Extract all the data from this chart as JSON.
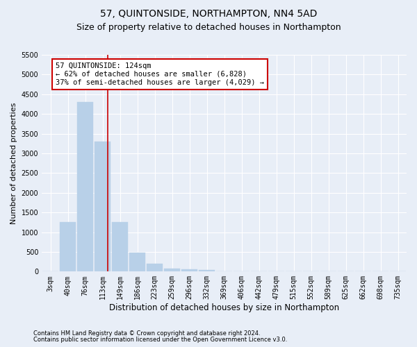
{
  "title": "57, QUINTONSIDE, NORTHAMPTON, NN4 5AD",
  "subtitle": "Size of property relative to detached houses in Northampton",
  "xlabel": "Distribution of detached houses by size in Northampton",
  "ylabel": "Number of detached properties",
  "categories": [
    "3sqm",
    "40sqm",
    "76sqm",
    "113sqm",
    "149sqm",
    "186sqm",
    "223sqm",
    "259sqm",
    "296sqm",
    "332sqm",
    "369sqm",
    "406sqm",
    "442sqm",
    "479sqm",
    "515sqm",
    "552sqm",
    "589sqm",
    "625sqm",
    "662sqm",
    "698sqm",
    "735sqm"
  ],
  "values": [
    0,
    1250,
    4300,
    3300,
    1250,
    480,
    200,
    80,
    60,
    40,
    0,
    0,
    0,
    0,
    0,
    0,
    0,
    0,
    0,
    0,
    0
  ],
  "bar_color": "#b8d0e8",
  "bar_edge_color": "#b8d0e8",
  "property_line_x": 3.3,
  "property_line_color": "#cc0000",
  "annotation_text": "57 QUINTONSIDE: 124sqm\n← 62% of detached houses are smaller (6,828)\n37% of semi-detached houses are larger (4,029) →",
  "annotation_box_color": "#ffffff",
  "annotation_box_edge": "#cc0000",
  "ylim": [
    0,
    5500
  ],
  "yticks": [
    0,
    500,
    1000,
    1500,
    2000,
    2500,
    3000,
    3500,
    4000,
    4500,
    5000,
    5500
  ],
  "footer_line1": "Contains HM Land Registry data © Crown copyright and database right 2024.",
  "footer_line2": "Contains public sector information licensed under the Open Government Licence v3.0.",
  "background_color": "#e8eef7",
  "plot_background": "#e8eef7",
  "title_fontsize": 10,
  "subtitle_fontsize": 9,
  "ylabel_fontsize": 8,
  "xlabel_fontsize": 8.5,
  "tick_fontsize": 7,
  "annotation_fontsize": 7.5,
  "footer_fontsize": 6,
  "grid_color": "#ffffff"
}
